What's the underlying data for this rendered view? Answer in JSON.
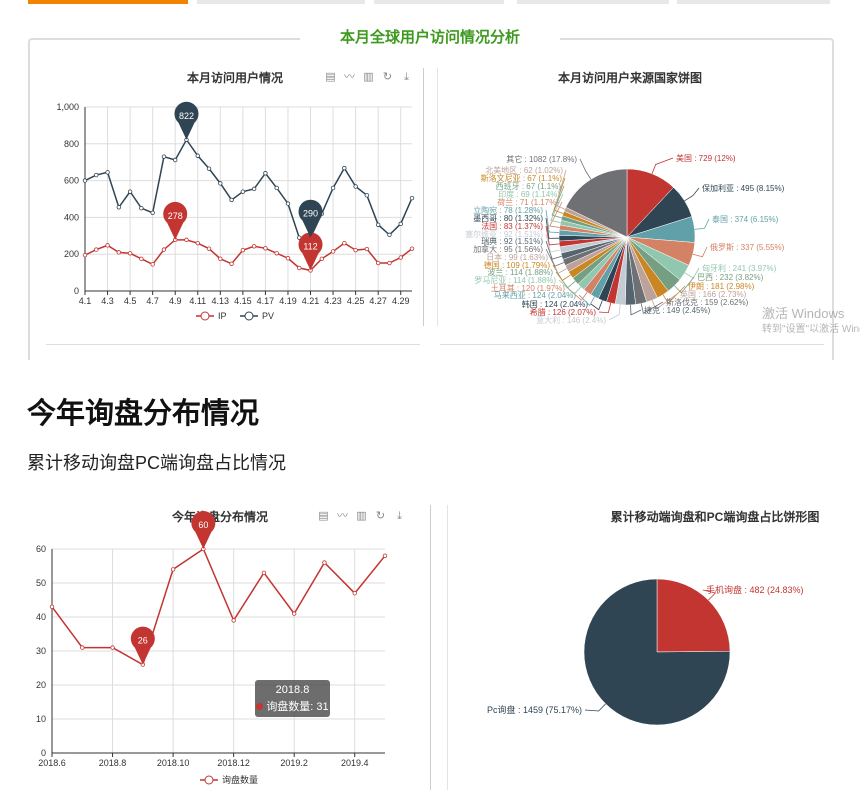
{
  "tabs": [
    {
      "active": true
    },
    {
      "active": false
    },
    {
      "active": false
    },
    {
      "active": false
    },
    {
      "active": false
    }
  ],
  "colors": {
    "accent": "#f08300",
    "section_title": "#3e9a1f",
    "red": "#c23531",
    "dark": "#2f4554"
  },
  "top_section": {
    "title": "本月全球用户访问情况分析"
  },
  "toolbox_icons": [
    "data-view-icon",
    "line-chart-icon",
    "bar-chart-icon",
    "restore-icon",
    "download-icon"
  ],
  "heading": {
    "title": "今年询盘分布情况",
    "subtitle": "累计移动询盘PC端询盘占比情况"
  },
  "tooltip": {
    "title": "2018.8",
    "label": "询盘数量: 31"
  },
  "watermark": {
    "line1": "激活 Windows",
    "line2": "转到\"设置\"以激活 Windows。"
  },
  "chart_data": [
    {
      "type": "line",
      "title": "本月访问用户情况",
      "categories": [
        "4.1",
        "4.2",
        "4.3",
        "4.4",
        "4.5",
        "4.6",
        "4.7",
        "4.8",
        "4.9",
        "4.10",
        "4.11",
        "4.12",
        "4.13",
        "4.14",
        "4.15",
        "4.16",
        "4.17",
        "4.18",
        "4.19",
        "4.20",
        "4.21",
        "4.22",
        "4.23",
        "4.24",
        "4.25",
        "4.26",
        "4.27",
        "4.28",
        "4.29",
        "4.30"
      ],
      "x_tick_labels": [
        "4.1",
        "4.3",
        "4.5",
        "4.7",
        "4.9",
        "4.11",
        "4.13",
        "4.15",
        "4.17",
        "4.19",
        "4.21",
        "4.23",
        "4.25",
        "4.27",
        "4.29"
      ],
      "y_tick_labels": [
        "0",
        "200",
        "400",
        "600",
        "800",
        "1,000"
      ],
      "ylim": [
        0,
        1000
      ],
      "grid": true,
      "legend": "bottom",
      "series": [
        {
          "name": "IP",
          "color": "#c23531",
          "values": [
            195,
            225,
            248,
            210,
            205,
            175,
            145,
            225,
            278,
            278,
            260,
            230,
            175,
            148,
            222,
            243,
            232,
            205,
            178,
            125,
            112,
            175,
            215,
            260,
            222,
            228,
            152,
            152,
            182,
            230
          ],
          "markers": [
            {
              "category": "4.9",
              "label": "278"
            },
            {
              "category": "4.21",
              "label": "112"
            }
          ]
        },
        {
          "name": "PV",
          "color": "#2f4554",
          "values": [
            600,
            630,
            645,
            455,
            540,
            450,
            425,
            730,
            712,
            822,
            735,
            665,
            585,
            495,
            540,
            555,
            640,
            560,
            475,
            290,
            290,
            420,
            560,
            668,
            568,
            520,
            360,
            305,
            365,
            505
          ],
          "markers": [
            {
              "category": "4.10",
              "label": "822"
            },
            {
              "category": "4.21",
              "label": "290"
            }
          ]
        }
      ]
    },
    {
      "type": "pie",
      "title": "本月访问用户来源国家饼图",
      "slices": [
        {
          "name": "美国",
          "value": 729,
          "pct": "12%"
        },
        {
          "name": "保加利亚",
          "value": 495,
          "pct": "8.15%"
        },
        {
          "name": "泰国",
          "value": 374,
          "pct": "6.15%"
        },
        {
          "name": "俄罗斯",
          "value": 337,
          "pct": "5.55%"
        },
        {
          "name": "匈牙利",
          "value": 241,
          "pct": "3.97%"
        },
        {
          "name": "巴西",
          "value": 232,
          "pct": "3.82%"
        },
        {
          "name": "伊朗",
          "value": 181,
          "pct": "2.98%"
        },
        {
          "name": "英国",
          "value": 166,
          "pct": "2.73%"
        },
        {
          "name": "斯洛伐克",
          "value": 159,
          "pct": "2.62%"
        },
        {
          "name": "捷克",
          "value": 149,
          "pct": "2.45%"
        },
        {
          "name": "意大利",
          "value": 146,
          "pct": "2.4%"
        },
        {
          "name": "希腊",
          "value": 126,
          "pct": "2.07%"
        },
        {
          "name": "韩国",
          "value": 124,
          "pct": "2.04%"
        },
        {
          "name": "马来西亚",
          "value": 124,
          "pct": "2.04%"
        },
        {
          "name": "土耳其",
          "value": 120,
          "pct": "1.97%"
        },
        {
          "name": "罗马尼亚",
          "value": 114,
          "pct": "1.88%"
        },
        {
          "name": "波兰",
          "value": 114,
          "pct": "1.88%"
        },
        {
          "name": "德国",
          "value": 109,
          "pct": "1.79%"
        },
        {
          "name": "日本",
          "value": 99,
          "pct": "1.63%"
        },
        {
          "name": "加拿大",
          "value": 95,
          "pct": "1.56%"
        },
        {
          "name": "瑞典",
          "value": 92,
          "pct": "1.51%"
        },
        {
          "name": "塞尔维亚",
          "value": 92,
          "pct": "1.51%"
        },
        {
          "name": "法国",
          "value": 83,
          "pct": "1.37%"
        },
        {
          "name": "墨西哥",
          "value": 80,
          "pct": "1.32%"
        },
        {
          "name": "立陶宛",
          "value": 78,
          "pct": "1.28%"
        },
        {
          "name": "荷兰",
          "value": 71,
          "pct": "1.17%"
        },
        {
          "name": "印度",
          "value": 69,
          "pct": "1.14%"
        },
        {
          "name": "西班牙",
          "value": 67,
          "pct": "1.1%"
        },
        {
          "name": "斯洛文尼亚",
          "value": 67,
          "pct": "1.1%"
        },
        {
          "name": "北美地区",
          "value": 62,
          "pct": "1.02%"
        },
        {
          "name": "其它",
          "value": 1082,
          "pct": "17.8%"
        }
      ],
      "palette": [
        "#c23531",
        "#2f4554",
        "#61a0a8",
        "#d48265",
        "#91c7ae",
        "#749f83",
        "#ca8622",
        "#bda29a",
        "#6e7074",
        "#546570",
        "#c4ccd3"
      ]
    },
    {
      "type": "line",
      "title": "今年询盘分布情况",
      "categories": [
        "2018.6",
        "2018.7",
        "2018.8",
        "2018.9",
        "2018.10",
        "2018.11",
        "2018.12",
        "2019.1",
        "2019.2",
        "2019.3",
        "2019.4",
        "2019.5"
      ],
      "x_tick_labels": [
        "2018.6",
        "2018.8",
        "2018.10",
        "2018.12",
        "2019.2",
        "2019.4"
      ],
      "y_tick_labels": [
        "0",
        "10",
        "20",
        "30",
        "40",
        "50",
        "60"
      ],
      "ylim": [
        0,
        60
      ],
      "grid": true,
      "legend": "bottom",
      "series": [
        {
          "name": "询盘数量",
          "color": "#c23531",
          "values": [
            43,
            31,
            31,
            26,
            54,
            60,
            39,
            53,
            41,
            56,
            47,
            58
          ],
          "markers": [
            {
              "category": "2018.11",
              "label": "60"
            },
            {
              "category": "2018.9",
              "label": "26"
            }
          ]
        }
      ]
    },
    {
      "type": "pie",
      "title": "累计移动端询盘和PC端询盘占比饼形图",
      "slices": [
        {
          "name": "手机询盘",
          "value": 482,
          "pct": "24.83%"
        },
        {
          "name": "Pc询盘",
          "value": 1459,
          "pct": "75.17%"
        }
      ],
      "palette": [
        "#c23531",
        "#2f4554"
      ]
    }
  ]
}
